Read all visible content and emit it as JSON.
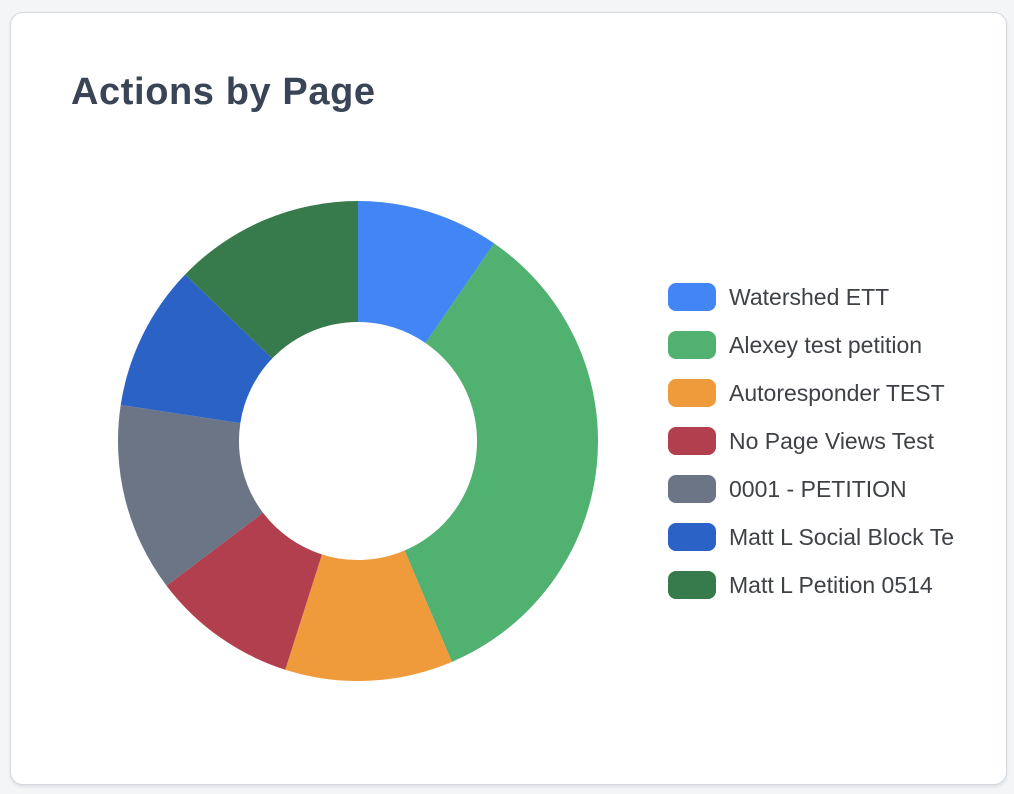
{
  "page": {
    "background": "#f4f5f7"
  },
  "card": {
    "title": "Actions by Page",
    "background": "#ffffff",
    "border_color": "#d3d9df"
  },
  "chart_data": {
    "type": "pie",
    "subtype": "donut",
    "title": "Actions by Page",
    "legend_position": "right",
    "hole_ratio": 0.5,
    "start_angle_deg": 0,
    "direction": "clockwise",
    "data_labels_shown": false,
    "slices": [
      {
        "label": "Watershed ETT",
        "value_percent": 9.6,
        "color": "#4285F4"
      },
      {
        "label": "Alexey test petition",
        "value_percent": 34.0,
        "color": "#51B170"
      },
      {
        "label": "Autoresponder TEST",
        "value_percent": 11.3,
        "color": "#F09B3B"
      },
      {
        "label": "No Page Views Test",
        "value_percent": 9.8,
        "color": "#B23F4E"
      },
      {
        "label": "0001 - PETITION",
        "value_percent": 12.7,
        "color": "#6B7586"
      },
      {
        "label": "Matt L Social Block Te",
        "value_percent": 9.8,
        "color": "#2A62C6"
      },
      {
        "label": "Matt L Petition 0514",
        "value_percent": 12.8,
        "color": "#377A4B"
      }
    ]
  }
}
